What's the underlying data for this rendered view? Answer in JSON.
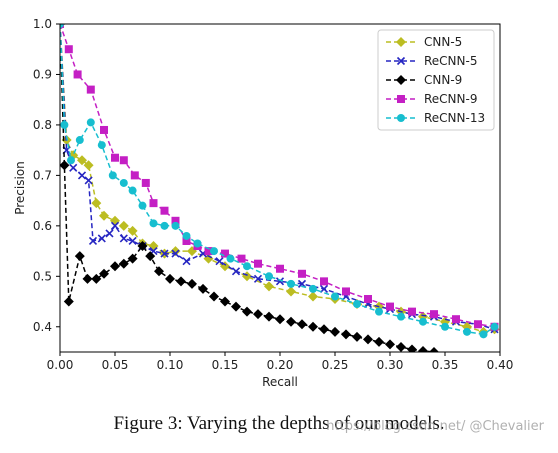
{
  "caption": "Figure 3: Varying the depths of our models.",
  "watermark": "https://blog.csdn.net/ @Chevalier",
  "chart_data": {
    "type": "line",
    "xlabel": "Recall",
    "ylabel": "Precision",
    "xlim": [
      0.0,
      0.4
    ],
    "ylim": [
      0.35,
      1.0
    ],
    "xticks": [
      "0.00",
      "0.05",
      "0.10",
      "0.15",
      "0.20",
      "0.25",
      "0.30",
      "0.35",
      "0.40"
    ],
    "yticks": [
      "0.4",
      "0.5",
      "0.6",
      "0.7",
      "0.8",
      "0.9",
      "1.0"
    ],
    "legend_position": "top-right",
    "grid": false,
    "series": [
      {
        "name": "CNN-5",
        "color": "#bcbd22",
        "marker": "diamond",
        "linestyle": "dashed",
        "points": [
          [
            0.0,
            1.0
          ],
          [
            0.006,
            0.77
          ],
          [
            0.012,
            0.74
          ],
          [
            0.02,
            0.73
          ],
          [
            0.026,
            0.72
          ],
          [
            0.033,
            0.645
          ],
          [
            0.04,
            0.62
          ],
          [
            0.05,
            0.61
          ],
          [
            0.058,
            0.6
          ],
          [
            0.066,
            0.59
          ],
          [
            0.075,
            0.565
          ],
          [
            0.085,
            0.56
          ],
          [
            0.095,
            0.545
          ],
          [
            0.105,
            0.55
          ],
          [
            0.12,
            0.55
          ],
          [
            0.135,
            0.535
          ],
          [
            0.15,
            0.52
          ],
          [
            0.17,
            0.5
          ],
          [
            0.19,
            0.48
          ],
          [
            0.21,
            0.47
          ],
          [
            0.23,
            0.46
          ],
          [
            0.25,
            0.455
          ],
          [
            0.27,
            0.445
          ],
          [
            0.29,
            0.44
          ],
          [
            0.31,
            0.43
          ],
          [
            0.33,
            0.42
          ],
          [
            0.35,
            0.41
          ],
          [
            0.37,
            0.4
          ],
          [
            0.385,
            0.39
          ],
          [
            0.395,
            0.395
          ]
        ]
      },
      {
        "name": "ReCNN-5",
        "color": "#2626c2",
        "marker": "x",
        "linestyle": "dashed",
        "points": [
          [
            0.0,
            1.0
          ],
          [
            0.006,
            0.75
          ],
          [
            0.012,
            0.715
          ],
          [
            0.02,
            0.7
          ],
          [
            0.026,
            0.69
          ],
          [
            0.03,
            0.57
          ],
          [
            0.038,
            0.575
          ],
          [
            0.045,
            0.585
          ],
          [
            0.05,
            0.6
          ],
          [
            0.058,
            0.575
          ],
          [
            0.066,
            0.57
          ],
          [
            0.075,
            0.56
          ],
          [
            0.085,
            0.55
          ],
          [
            0.095,
            0.545
          ],
          [
            0.105,
            0.545
          ],
          [
            0.115,
            0.53
          ],
          [
            0.13,
            0.545
          ],
          [
            0.145,
            0.53
          ],
          [
            0.16,
            0.51
          ],
          [
            0.18,
            0.495
          ],
          [
            0.2,
            0.49
          ],
          [
            0.22,
            0.485
          ],
          [
            0.24,
            0.475
          ],
          [
            0.26,
            0.46
          ],
          [
            0.28,
            0.445
          ],
          [
            0.3,
            0.435
          ],
          [
            0.32,
            0.425
          ],
          [
            0.34,
            0.42
          ],
          [
            0.36,
            0.41
          ],
          [
            0.38,
            0.405
          ],
          [
            0.395,
            0.395
          ]
        ]
      },
      {
        "name": "CNN-9",
        "color": "#000000",
        "marker": "diamond",
        "linestyle": "dashed",
        "points": [
          [
            0.0,
            1.0
          ],
          [
            0.004,
            0.72
          ],
          [
            0.008,
            0.45
          ],
          [
            0.018,
            0.54
          ],
          [
            0.025,
            0.495
          ],
          [
            0.033,
            0.495
          ],
          [
            0.04,
            0.505
          ],
          [
            0.05,
            0.52
          ],
          [
            0.058,
            0.525
          ],
          [
            0.066,
            0.535
          ],
          [
            0.075,
            0.56
          ],
          [
            0.082,
            0.54
          ],
          [
            0.09,
            0.51
          ],
          [
            0.1,
            0.495
          ],
          [
            0.11,
            0.49
          ],
          [
            0.12,
            0.485
          ],
          [
            0.13,
            0.475
          ],
          [
            0.14,
            0.46
          ],
          [
            0.15,
            0.45
          ],
          [
            0.16,
            0.44
          ],
          [
            0.17,
            0.43
          ],
          [
            0.18,
            0.425
          ],
          [
            0.19,
            0.42
          ],
          [
            0.2,
            0.415
          ],
          [
            0.21,
            0.41
          ],
          [
            0.22,
            0.405
          ],
          [
            0.23,
            0.4
          ],
          [
            0.24,
            0.395
          ],
          [
            0.25,
            0.39
          ],
          [
            0.26,
            0.385
          ],
          [
            0.27,
            0.38
          ],
          [
            0.28,
            0.375
          ],
          [
            0.29,
            0.37
          ],
          [
            0.3,
            0.365
          ],
          [
            0.31,
            0.36
          ],
          [
            0.32,
            0.355
          ],
          [
            0.33,
            0.352
          ],
          [
            0.34,
            0.35
          ]
        ]
      },
      {
        "name": "ReCNN-9",
        "color": "#c41fc4",
        "marker": "square",
        "linestyle": "dashed",
        "points": [
          [
            0.0,
            1.0
          ],
          [
            0.008,
            0.95
          ],
          [
            0.016,
            0.9
          ],
          [
            0.028,
            0.87
          ],
          [
            0.04,
            0.79
          ],
          [
            0.05,
            0.735
          ],
          [
            0.058,
            0.73
          ],
          [
            0.068,
            0.7
          ],
          [
            0.078,
            0.685
          ],
          [
            0.085,
            0.645
          ],
          [
            0.095,
            0.63
          ],
          [
            0.105,
            0.61
          ],
          [
            0.115,
            0.57
          ],
          [
            0.125,
            0.56
          ],
          [
            0.135,
            0.55
          ],
          [
            0.15,
            0.545
          ],
          [
            0.165,
            0.535
          ],
          [
            0.18,
            0.525
          ],
          [
            0.2,
            0.515
          ],
          [
            0.22,
            0.505
          ],
          [
            0.24,
            0.49
          ],
          [
            0.26,
            0.47
          ],
          [
            0.28,
            0.455
          ],
          [
            0.3,
            0.44
          ],
          [
            0.32,
            0.43
          ],
          [
            0.34,
            0.425
          ],
          [
            0.36,
            0.415
          ],
          [
            0.38,
            0.405
          ],
          [
            0.395,
            0.4
          ]
        ]
      },
      {
        "name": "ReCNN-13",
        "color": "#17becf",
        "marker": "circle",
        "linestyle": "dashed",
        "points": [
          [
            0.0,
            1.0
          ],
          [
            0.004,
            0.8
          ],
          [
            0.01,
            0.73
          ],
          [
            0.018,
            0.77
          ],
          [
            0.028,
            0.805
          ],
          [
            0.038,
            0.76
          ],
          [
            0.048,
            0.7
          ],
          [
            0.058,
            0.685
          ],
          [
            0.066,
            0.67
          ],
          [
            0.075,
            0.64
          ],
          [
            0.085,
            0.605
          ],
          [
            0.095,
            0.6
          ],
          [
            0.105,
            0.6
          ],
          [
            0.115,
            0.58
          ],
          [
            0.125,
            0.565
          ],
          [
            0.14,
            0.55
          ],
          [
            0.155,
            0.535
          ],
          [
            0.17,
            0.52
          ],
          [
            0.19,
            0.5
          ],
          [
            0.21,
            0.485
          ],
          [
            0.23,
            0.475
          ],
          [
            0.25,
            0.46
          ],
          [
            0.27,
            0.445
          ],
          [
            0.29,
            0.43
          ],
          [
            0.31,
            0.42
          ],
          [
            0.33,
            0.41
          ],
          [
            0.35,
            0.4
          ],
          [
            0.37,
            0.39
          ],
          [
            0.385,
            0.385
          ],
          [
            0.395,
            0.4
          ]
        ]
      }
    ]
  }
}
